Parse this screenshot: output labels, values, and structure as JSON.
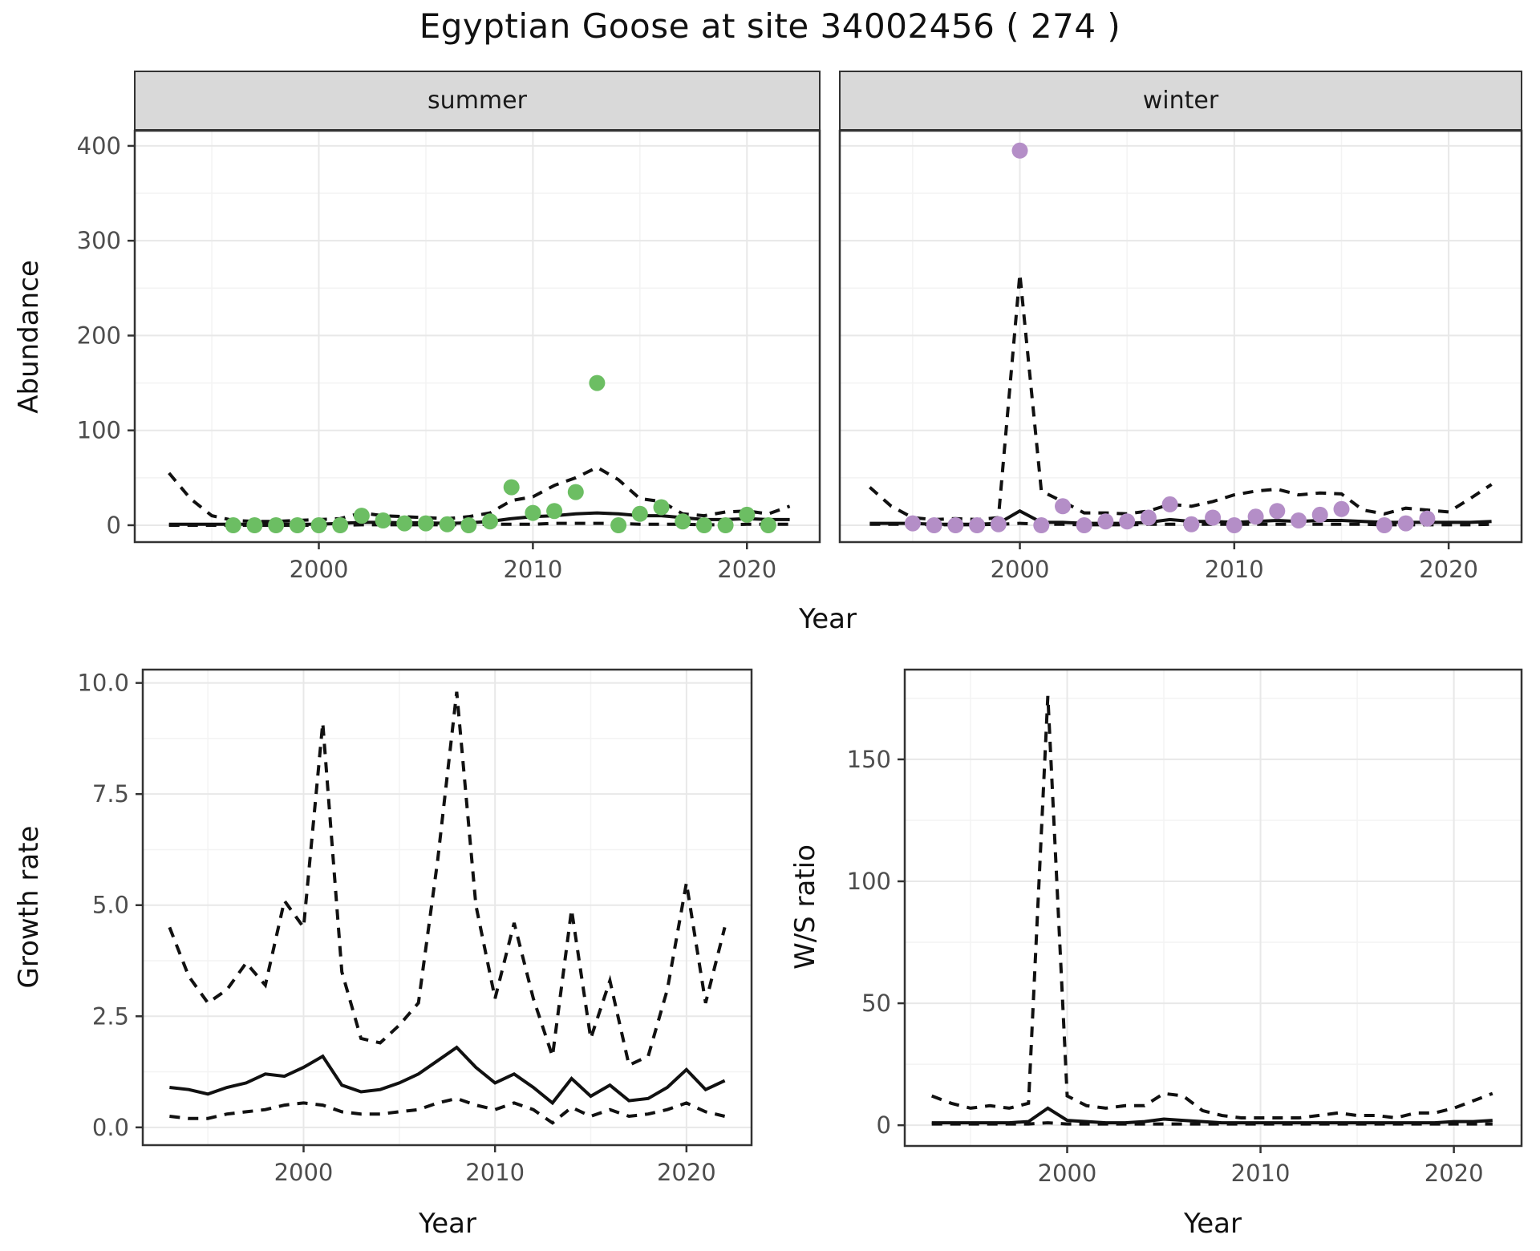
{
  "title": "Egyptian Goose at site 34002456 ( 274 )",
  "facets": {
    "summer": "summer",
    "winter": "winter"
  },
  "axis_labels": {
    "abundance": "Abundance",
    "growth": "Growth rate",
    "ws": "W/S ratio",
    "year_top": "Year",
    "year_bottom_left": "Year",
    "year_bottom_right": "Year"
  },
  "colors": {
    "summer_point": "#6CBE63",
    "winter_point": "#B48EC7",
    "line": "#111111",
    "strip_bg": "#D9D9D9",
    "grid_major": "#E8E8E8",
    "grid_minor": "#F3F3F3",
    "axis_text": "#4D4D4D",
    "panel_border": "#333333"
  },
  "chart_data": [
    {
      "id": "abundance-summer",
      "type": "scatter",
      "panel": "summer",
      "facet": "summer",
      "xlabel": "Year",
      "ylabel": "Abundance",
      "xlim": [
        1991.4,
        2023.4
      ],
      "ylim": [
        -17.8,
        416
      ],
      "xticks": {
        "values": [
          2000,
          2010,
          2020
        ],
        "labels": [
          "2000",
          "2010",
          "2020"
        ],
        "minor": [
          1995,
          2005,
          2015
        ],
        "show_labels": true,
        "show_marks": true
      },
      "yticks": {
        "values": [
          0,
          100,
          200,
          300,
          400
        ],
        "labels": [
          "0",
          "100",
          "200",
          "300",
          "400"
        ],
        "minor": [
          50,
          150,
          250,
          350
        ],
        "show_labels": true,
        "show_marks": true
      },
      "fit_years": [
        1993,
        1994,
        1995,
        1996,
        1997,
        1998,
        1999,
        2000,
        2001,
        2002,
        2003,
        2004,
        2005,
        2006,
        2007,
        2008,
        2009,
        2010,
        2011,
        2012,
        2013,
        2014,
        2015,
        2016,
        2017,
        2018,
        2019,
        2020,
        2021,
        2022
      ],
      "fit_mean": [
        1,
        1,
        1,
        1,
        1,
        1,
        1,
        1,
        2,
        3,
        3,
        2.5,
        2.5,
        2,
        2.5,
        4,
        7,
        9,
        10,
        12,
        13,
        12,
        10,
        10,
        8,
        6,
        6,
        7,
        6,
        6
      ],
      "fit_upper": [
        55,
        28,
        10,
        5,
        4,
        4,
        5,
        6,
        7,
        13,
        10,
        9,
        8,
        7,
        9,
        13,
        26,
        30,
        42,
        50,
        61,
        48,
        28,
        25,
        12,
        10,
        14,
        15,
        12,
        20
      ],
      "fit_lower": [
        0,
        0,
        0,
        0,
        0,
        0,
        0,
        0,
        0,
        0.5,
        0.5,
        0.5,
        0.5,
        0.5,
        0.5,
        1,
        1,
        1,
        2,
        2,
        2,
        2,
        1,
        1,
        1,
        0.5,
        0.5,
        1,
        1,
        1
      ],
      "point_years": [
        1996,
        1997,
        1998,
        1999,
        2000,
        2001,
        2002,
        2003,
        2004,
        2005,
        2006,
        2007,
        2008,
        2009,
        2010,
        2011,
        2012,
        2013,
        2014,
        2015,
        2016,
        2017,
        2018,
        2019,
        2020,
        2021
      ],
      "point_values": [
        0,
        0,
        0,
        0,
        0,
        0,
        10,
        5,
        2,
        2,
        1,
        0,
        4,
        40,
        13,
        15,
        35,
        150,
        0,
        12,
        19,
        4,
        0,
        0,
        11,
        0
      ],
      "point_color": "#6CBE63"
    },
    {
      "id": "abundance-winter",
      "type": "scatter",
      "panel": "winter",
      "facet": "winter",
      "xlabel": "Year",
      "ylabel": "Abundance",
      "xlim": [
        1991.6,
        2023.4
      ],
      "ylim": [
        -17.8,
        416
      ],
      "xticks": {
        "values": [
          2000,
          2010,
          2020
        ],
        "labels": [
          "2000",
          "2010",
          "2020"
        ],
        "minor": [
          1995,
          2005,
          2015
        ],
        "show_labels": true,
        "show_marks": true
      },
      "yticks": {
        "values": [
          0,
          100,
          200,
          300,
          400
        ],
        "labels": [
          "0",
          "100",
          "200",
          "300",
          "400"
        ],
        "minor": [
          50,
          150,
          250,
          350
        ],
        "show_labels": false,
        "show_marks": false
      },
      "fit_years": [
        1993,
        1994,
        1995,
        1996,
        1997,
        1998,
        1999,
        2000,
        2001,
        2002,
        2003,
        2004,
        2005,
        2006,
        2007,
        2008,
        2009,
        2010,
        2011,
        2012,
        2013,
        2014,
        2015,
        2016,
        2017,
        2018,
        2019,
        2020,
        2021,
        2022
      ],
      "fit_mean": [
        2,
        2,
        2,
        1,
        1,
        1,
        2,
        15,
        3,
        3,
        2,
        2,
        2,
        3,
        6,
        4,
        4,
        3,
        4,
        5,
        4,
        5,
        5,
        4,
        3,
        3,
        3,
        3,
        3,
        4
      ],
      "fit_upper": [
        40,
        20,
        8,
        6,
        7,
        6,
        8,
        265,
        36,
        25,
        13,
        13,
        12,
        15,
        22,
        20,
        25,
        32,
        36,
        38,
        32,
        34,
        33,
        16,
        12,
        18,
        16,
        14,
        28,
        43
      ],
      "fit_lower": [
        1,
        1,
        1,
        0.5,
        0.5,
        0.5,
        1,
        2,
        1,
        1,
        0.5,
        0.5,
        0.5,
        1,
        1,
        1,
        1,
        1,
        1,
        1,
        1,
        1,
        1,
        1,
        0.5,
        0.5,
        0.5,
        0.5,
        0.5,
        1
      ],
      "point_years": [
        1995,
        1996,
        1997,
        1998,
        1999,
        2000,
        2001,
        2002,
        2003,
        2004,
        2005,
        2006,
        2007,
        2008,
        2009,
        2010,
        2011,
        2012,
        2013,
        2014,
        2015,
        2017,
        2018,
        2019
      ],
      "point_values": [
        2,
        0,
        0,
        0,
        1,
        395,
        0,
        20,
        0,
        4,
        4,
        8,
        22,
        1,
        8,
        0,
        9,
        15,
        5,
        11,
        17,
        0,
        2,
        7
      ],
      "point_color": "#B48EC7"
    },
    {
      "id": "growth-rate",
      "type": "line",
      "panel": "growth",
      "facet": null,
      "xlabel": "Year",
      "ylabel": "Growth rate",
      "xlim": [
        1991.6,
        2023.4
      ],
      "ylim": [
        -0.4,
        10.3
      ],
      "xticks": {
        "values": [
          2000,
          2010,
          2020
        ],
        "labels": [
          "2000",
          "2010",
          "2020"
        ],
        "minor": [
          1995,
          2005,
          2015
        ],
        "show_labels": true,
        "show_marks": true
      },
      "yticks": {
        "values": [
          0,
          2.5,
          5,
          7.5,
          10
        ],
        "labels": [
          "0.0",
          "2.5",
          "5.0",
          "7.5",
          "10.0"
        ],
        "minor": [
          1.25,
          3.75,
          6.25,
          8.75
        ],
        "show_labels": true,
        "show_marks": true
      },
      "fit_years": [
        1993,
        1994,
        1995,
        1996,
        1997,
        1998,
        1999,
        2000,
        2001,
        2002,
        2003,
        2004,
        2005,
        2006,
        2007,
        2008,
        2009,
        2010,
        2011,
        2012,
        2013,
        2014,
        2015,
        2016,
        2017,
        2018,
        2019,
        2020,
        2021,
        2022
      ],
      "fit_mean": [
        0.9,
        0.85,
        0.75,
        0.9,
        1.0,
        1.2,
        1.15,
        1.35,
        1.6,
        0.95,
        0.8,
        0.85,
        1.0,
        1.2,
        1.5,
        1.8,
        1.35,
        1.0,
        1.2,
        0.9,
        0.55,
        1.1,
        0.7,
        0.95,
        0.6,
        0.65,
        0.9,
        1.3,
        0.85,
        1.05
      ],
      "fit_upper": [
        4.5,
        3.4,
        2.8,
        3.1,
        3.7,
        3.2,
        5.1,
        4.5,
        9.1,
        3.5,
        2.0,
        1.9,
        2.3,
        2.8,
        6.0,
        9.8,
        5.0,
        2.9,
        4.6,
        2.9,
        1.6,
        4.9,
        2.0,
        3.3,
        1.4,
        1.6,
        3.1,
        5.5,
        2.8,
        4.5
      ],
      "fit_lower": [
        0.25,
        0.2,
        0.2,
        0.3,
        0.35,
        0.4,
        0.5,
        0.55,
        0.5,
        0.35,
        0.3,
        0.3,
        0.35,
        0.4,
        0.55,
        0.65,
        0.5,
        0.4,
        0.55,
        0.4,
        0.1,
        0.45,
        0.25,
        0.4,
        0.25,
        0.3,
        0.4,
        0.55,
        0.35,
        0.25
      ],
      "point_years": [],
      "point_values": [],
      "point_color": null
    },
    {
      "id": "ws-ratio",
      "type": "line",
      "panel": "ws",
      "facet": null,
      "xlabel": "Year",
      "ylabel": "W/S ratio",
      "xlim": [
        1991.6,
        2023.5
      ],
      "ylim": [
        -8.5,
        186.8
      ],
      "xticks": {
        "values": [
          2000,
          2010,
          2020
        ],
        "labels": [
          "2000",
          "2010",
          "2020"
        ],
        "minor": [
          1995,
          2005,
          2015
        ],
        "show_labels": true,
        "show_marks": true
      },
      "yticks": {
        "values": [
          0,
          50,
          100,
          150
        ],
        "labels": [
          "0",
          "50",
          "100",
          "150"
        ],
        "minor": [
          25,
          75,
          125,
          175
        ],
        "show_labels": true,
        "show_marks": true
      },
      "fit_years": [
        1993,
        1994,
        1995,
        1996,
        1997,
        1998,
        1999,
        2000,
        2001,
        2002,
        2003,
        2004,
        2005,
        2006,
        2007,
        2008,
        2009,
        2010,
        2011,
        2012,
        2013,
        2014,
        2015,
        2016,
        2017,
        2018,
        2019,
        2020,
        2021,
        2022
      ],
      "fit_mean": [
        1,
        1,
        1,
        1,
        1,
        1.5,
        7,
        2,
        1.5,
        1,
        1,
        1.5,
        2.5,
        2,
        1.5,
        1,
        1,
        1,
        1,
        1,
        1,
        1,
        1,
        1,
        1,
        1,
        1,
        1.5,
        1.5,
        2
      ],
      "fit_upper": [
        12,
        9,
        7,
        8,
        7,
        9,
        176,
        12,
        8,
        7,
        8,
        8,
        13,
        12,
        6,
        4,
        3,
        3,
        3,
        3,
        4,
        5,
        4,
        4,
        3,
        5,
        5,
        7,
        10,
        13
      ],
      "fit_lower": [
        0.5,
        0.5,
        0.5,
        0.5,
        0.5,
        0.5,
        1,
        0.5,
        0.5,
        0.5,
        0.5,
        0.5,
        0.5,
        0.5,
        0.5,
        0.5,
        0.5,
        0.5,
        0.5,
        0.5,
        0.5,
        0.5,
        0.5,
        0.5,
        0.5,
        0.5,
        0.5,
        0.5,
        0.5,
        0.5
      ],
      "point_years": [],
      "point_values": [],
      "point_color": null
    }
  ]
}
